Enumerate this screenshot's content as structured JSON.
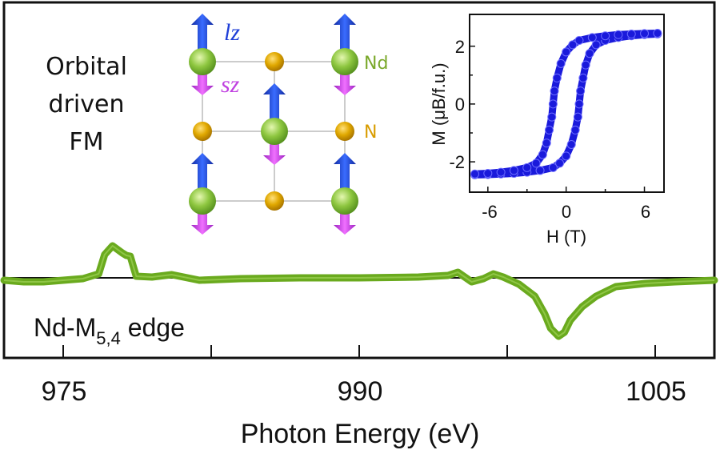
{
  "chart_data": [
    {
      "type": "line",
      "xlabel": "Photon Energy (eV)",
      "ylabel": "",
      "xlim": [
        972,
        1008
      ],
      "x_ticks": [
        975,
        982.5,
        990,
        997.5,
        1005
      ],
      "x_tick_labels": [
        "975",
        "990",
        "1005"
      ],
      "ylim": [
        -1.9,
        1.9
      ],
      "baseline": 0,
      "grid": false,
      "series": [
        {
          "color": "#6aaa1e",
          "x": [
            972,
            973,
            974,
            975,
            976,
            976.8,
            977.1,
            977.5,
            978.0,
            978.2,
            978.4,
            978.7,
            979.5,
            980.5,
            981.9,
            984,
            987,
            990,
            993,
            994.5,
            995.0,
            995.7,
            996.3,
            996.8,
            997.3,
            998.1,
            998.9,
            999.4,
            999.7,
            1000.1,
            1000.4,
            1000.7,
            1001.3,
            1002.0,
            1003.0,
            1004.5,
            1006,
            1008
          ],
          "y": [
            -0.06,
            -0.1,
            -0.1,
            -0.06,
            -0.02,
            0.1,
            0.58,
            0.8,
            0.62,
            0.56,
            0.54,
            0.04,
            0.02,
            0.08,
            -0.06,
            -0.02,
            0.0,
            0.0,
            0.02,
            0.06,
            0.14,
            -0.1,
            -0.02,
            0.1,
            0.02,
            -0.16,
            -0.46,
            -0.9,
            -1.26,
            -1.46,
            -1.36,
            -1.06,
            -0.72,
            -0.46,
            -0.22,
            -0.14,
            -0.1,
            -0.06
          ]
        }
      ],
      "annotations": {
        "title_lines": [
          "Orbital",
          "driven",
          "FM"
        ],
        "edge_label_main": "Nd-M",
        "edge_label_sub": "5,4",
        "edge_label_rest": " edge"
      }
    },
    {
      "type": "scatter",
      "xlabel": "H (T)",
      "ylabel": "M (μB/f.u.)",
      "xlim": [
        -7.4,
        7.5
      ],
      "ylim": [
        -3.05,
        3.1
      ],
      "x_ticks": [
        -6,
        0,
        6
      ],
      "y_ticks": [
        -2,
        0,
        2
      ],
      "x_tick_labels": [
        "-6",
        "0",
        "6"
      ],
      "y_tick_labels": [
        "-2",
        "0",
        "2"
      ],
      "marker_color": "#1a1adb",
      "series": [
        {
          "x": [
            -7,
            -6,
            -5,
            -4,
            -3,
            -2,
            -1,
            -0.5,
            0,
            0.4,
            0.7,
            0.9,
            1.0,
            1.1,
            1.3,
            1.5,
            1.8,
            2.3,
            3,
            4,
            5,
            6,
            7
          ],
          "y": [
            -2.45,
            -2.44,
            -2.42,
            -2.4,
            -2.36,
            -2.3,
            -2.2,
            -2.05,
            -1.8,
            -1.4,
            -0.9,
            -0.45,
            0,
            0.45,
            0.9,
            1.35,
            1.75,
            2.05,
            2.2,
            2.3,
            2.36,
            2.4,
            2.42
          ]
        },
        {
          "x": [
            7,
            6,
            5,
            4,
            3,
            2,
            1,
            0.5,
            0,
            -0.4,
            -0.7,
            -0.9,
            -1.0,
            -1.1,
            -1.3,
            -1.5,
            -1.8,
            -2.3,
            -3,
            -4,
            -5,
            -6,
            -7
          ],
          "y": [
            2.45,
            2.44,
            2.42,
            2.4,
            2.36,
            2.3,
            2.2,
            2.05,
            1.8,
            1.4,
            0.9,
            0.45,
            0,
            -0.45,
            -0.9,
            -1.35,
            -1.75,
            -2.05,
            -2.2,
            -2.3,
            -2.36,
            -2.4,
            -2.42
          ]
        }
      ]
    }
  ],
  "lattice": {
    "lz_label": "lz",
    "sz_label": "sz",
    "nd_label": "Nd",
    "n_label": "N",
    "colors": {
      "nd": "#8dc63f",
      "n": "#e0a800",
      "lz": "#1f3fd8",
      "sz": "#c040e0"
    }
  }
}
